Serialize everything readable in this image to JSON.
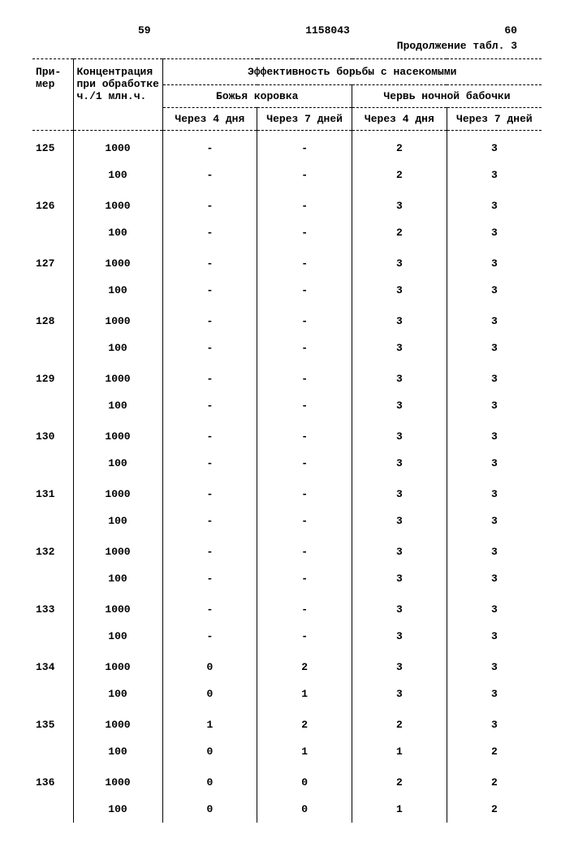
{
  "header": {
    "left_page": "59",
    "doc_number": "1158043",
    "right_page": "60",
    "continuation": "Продолжение табл. 3"
  },
  "table": {
    "columns": {
      "example": "При-\nмер",
      "concentration": "Концентрация при обработке ч./1 млн.ч.",
      "group_main": "Эффективность борьбы с насекомыми",
      "group_a": "Божья коровка",
      "group_b": "Червь ночной бабочки",
      "sub_4d": "Через 4 дня",
      "sub_7d": "Через 7 дней"
    },
    "rows": [
      {
        "ex": "125",
        "conc": "1000",
        "a4": "-",
        "a7": "-",
        "b4": "2",
        "b7": "3"
      },
      {
        "ex": "",
        "conc": "100",
        "a4": "-",
        "a7": "-",
        "b4": "2",
        "b7": "3"
      },
      {
        "ex": "126",
        "conc": "1000",
        "a4": "-",
        "a7": "-",
        "b4": "3",
        "b7": "3"
      },
      {
        "ex": "",
        "conc": "100",
        "a4": "-",
        "a7": "-",
        "b4": "2",
        "b7": "3"
      },
      {
        "ex": "127",
        "conc": "1000",
        "a4": "-",
        "a7": "-",
        "b4": "3",
        "b7": "3"
      },
      {
        "ex": "",
        "conc": "100",
        "a4": "-",
        "a7": "-",
        "b4": "3",
        "b7": "3"
      },
      {
        "ex": "128",
        "conc": "1000",
        "a4": "-",
        "a7": "-",
        "b4": "3",
        "b7": "3"
      },
      {
        "ex": "",
        "conc": "100",
        "a4": "-",
        "a7": "-",
        "b4": "3",
        "b7": "3"
      },
      {
        "ex": "129",
        "conc": "1000",
        "a4": "-",
        "a7": "-",
        "b4": "3",
        "b7": "3"
      },
      {
        "ex": "",
        "conc": "100",
        "a4": "-",
        "a7": "-",
        "b4": "3",
        "b7": "3"
      },
      {
        "ex": "130",
        "conc": "1000",
        "a4": "-",
        "a7": "-",
        "b4": "3",
        "b7": "3"
      },
      {
        "ex": "",
        "conc": "100",
        "a4": "-",
        "a7": "-",
        "b4": "3",
        "b7": "3"
      },
      {
        "ex": "131",
        "conc": "1000",
        "a4": "-",
        "a7": "-",
        "b4": "3",
        "b7": "3"
      },
      {
        "ex": "",
        "conc": "100",
        "a4": "-",
        "a7": "-",
        "b4": "3",
        "b7": "3"
      },
      {
        "ex": "132",
        "conc": "1000",
        "a4": "-",
        "a7": "-",
        "b4": "3",
        "b7": "3"
      },
      {
        "ex": "",
        "conc": "100",
        "a4": "-",
        "a7": "-",
        "b4": "3",
        "b7": "3"
      },
      {
        "ex": "133",
        "conc": "1000",
        "a4": "-",
        "a7": "-",
        "b4": "3",
        "b7": "3"
      },
      {
        "ex": "",
        "conc": "100",
        "a4": "-",
        "a7": "-",
        "b4": "3",
        "b7": "3"
      },
      {
        "ex": "134",
        "conc": "1000",
        "a4": "0",
        "a7": "2",
        "b4": "3",
        "b7": "3"
      },
      {
        "ex": "",
        "conc": "100",
        "a4": "0",
        "a7": "1",
        "b4": "3",
        "b7": "3"
      },
      {
        "ex": "135",
        "conc": "1000",
        "a4": "1",
        "a7": "2",
        "b4": "2",
        "b7": "3"
      },
      {
        "ex": "",
        "conc": "100",
        "a4": "0",
        "a7": "1",
        "b4": "1",
        "b7": "2"
      },
      {
        "ex": "136",
        "conc": "1000",
        "a4": "0",
        "a7": "0",
        "b4": "2",
        "b7": "2"
      },
      {
        "ex": "",
        "conc": "100",
        "a4": "0",
        "a7": "0",
        "b4": "1",
        "b7": "2"
      }
    ]
  }
}
